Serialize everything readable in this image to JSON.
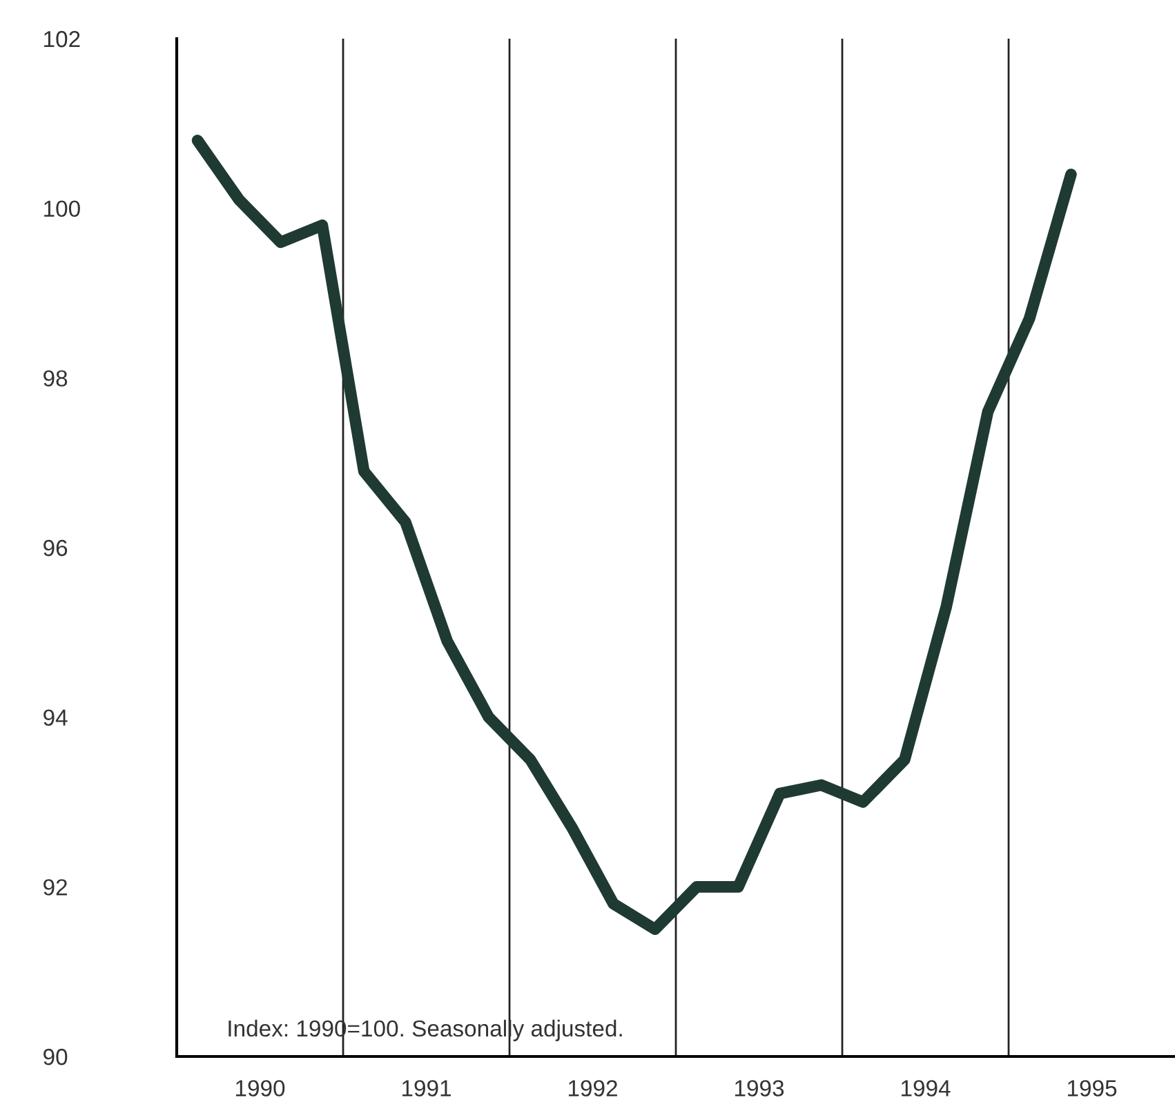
{
  "chart_data": {
    "type": "line",
    "x": [
      1990.125,
      1990.375,
      1990.625,
      1990.875,
      1991.125,
      1991.375,
      1991.625,
      1991.875,
      1992.125,
      1992.375,
      1992.625,
      1992.875,
      1993.125,
      1993.375,
      1993.625,
      1993.875,
      1994.125,
      1994.375,
      1994.625,
      1994.875,
      1995.125,
      1995.375
    ],
    "series": [
      {
        "color": "#1f3a33",
        "values": [
          100.8,
          100.1,
          99.6,
          99.8,
          96.9,
          96.3,
          94.9,
          94.0,
          93.5,
          92.7,
          91.8,
          91.5,
          92.0,
          92.0,
          93.1,
          93.2,
          93.0,
          93.5,
          95.3,
          97.6,
          98.7,
          100.4
        ]
      }
    ],
    "xlim": [
      1990,
      1996
    ],
    "xticks": [
      {
        "value": 1990.5,
        "label": "1990"
      },
      {
        "value": 1991.5,
        "label": "1991"
      },
      {
        "value": 1992.5,
        "label": "1992"
      },
      {
        "value": 1993.5,
        "label": "1993"
      },
      {
        "value": 1994.5,
        "label": "1994"
      },
      {
        "value": 1995.5,
        "label": "1995"
      }
    ],
    "ylim": [
      90,
      102
    ],
    "yticks": [
      90,
      92,
      94,
      96,
      98,
      100,
      102
    ],
    "ref_lines": [
      {
        "axis": "x",
        "value": 1991,
        "color": "#222222"
      },
      {
        "axis": "x",
        "value": 1992,
        "color": "#222222"
      },
      {
        "axis": "x",
        "value": 1993,
        "color": "#222222"
      },
      {
        "axis": "x",
        "value": 1994,
        "color": "#222222"
      },
      {
        "axis": "x",
        "value": 1995,
        "color": "#222222"
      }
    ],
    "annotations": [
      "Index: 1990=100. Seasonally adjusted."
    ],
    "grid": false,
    "line_style": "solid"
  }
}
